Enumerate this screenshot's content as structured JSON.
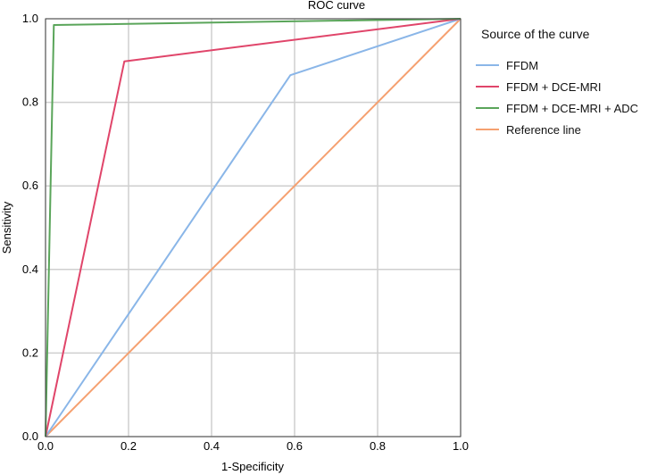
{
  "chart_data": {
    "type": "line",
    "title": "ROC curve",
    "xlabel": "1-Specificity",
    "ylabel": "Sensitivity",
    "xlim": [
      0,
      1
    ],
    "ylim": [
      0,
      1
    ],
    "xticks": [
      "0.0",
      "0.2",
      "0.4",
      "0.6",
      "0.8",
      "1.0"
    ],
    "yticks": [
      "0.0",
      "0.2",
      "0.4",
      "0.6",
      "0.8",
      "1.0"
    ],
    "grid": true,
    "legend": {
      "title": "Source of the curve",
      "placement": "right"
    },
    "series": [
      {
        "name": "FFDM",
        "color": "#8ab6e8",
        "x": [
          0,
          0.59,
          1.0
        ],
        "y": [
          0,
          0.865,
          1.0
        ]
      },
      {
        "name": "FFDM + DCE-MRI",
        "color": "#e0456a",
        "x": [
          0,
          0.19,
          1.0
        ],
        "y": [
          0,
          0.898,
          1.0
        ]
      },
      {
        "name": "FFDM + DCE-MRI + ADC",
        "color": "#5aa55a",
        "x": [
          0,
          0.02,
          1.0
        ],
        "y": [
          0,
          0.985,
          1.0
        ]
      },
      {
        "name": "Reference line",
        "color": "#f5a070",
        "x": [
          0,
          1.0
        ],
        "y": [
          0,
          1.0
        ]
      }
    ]
  }
}
